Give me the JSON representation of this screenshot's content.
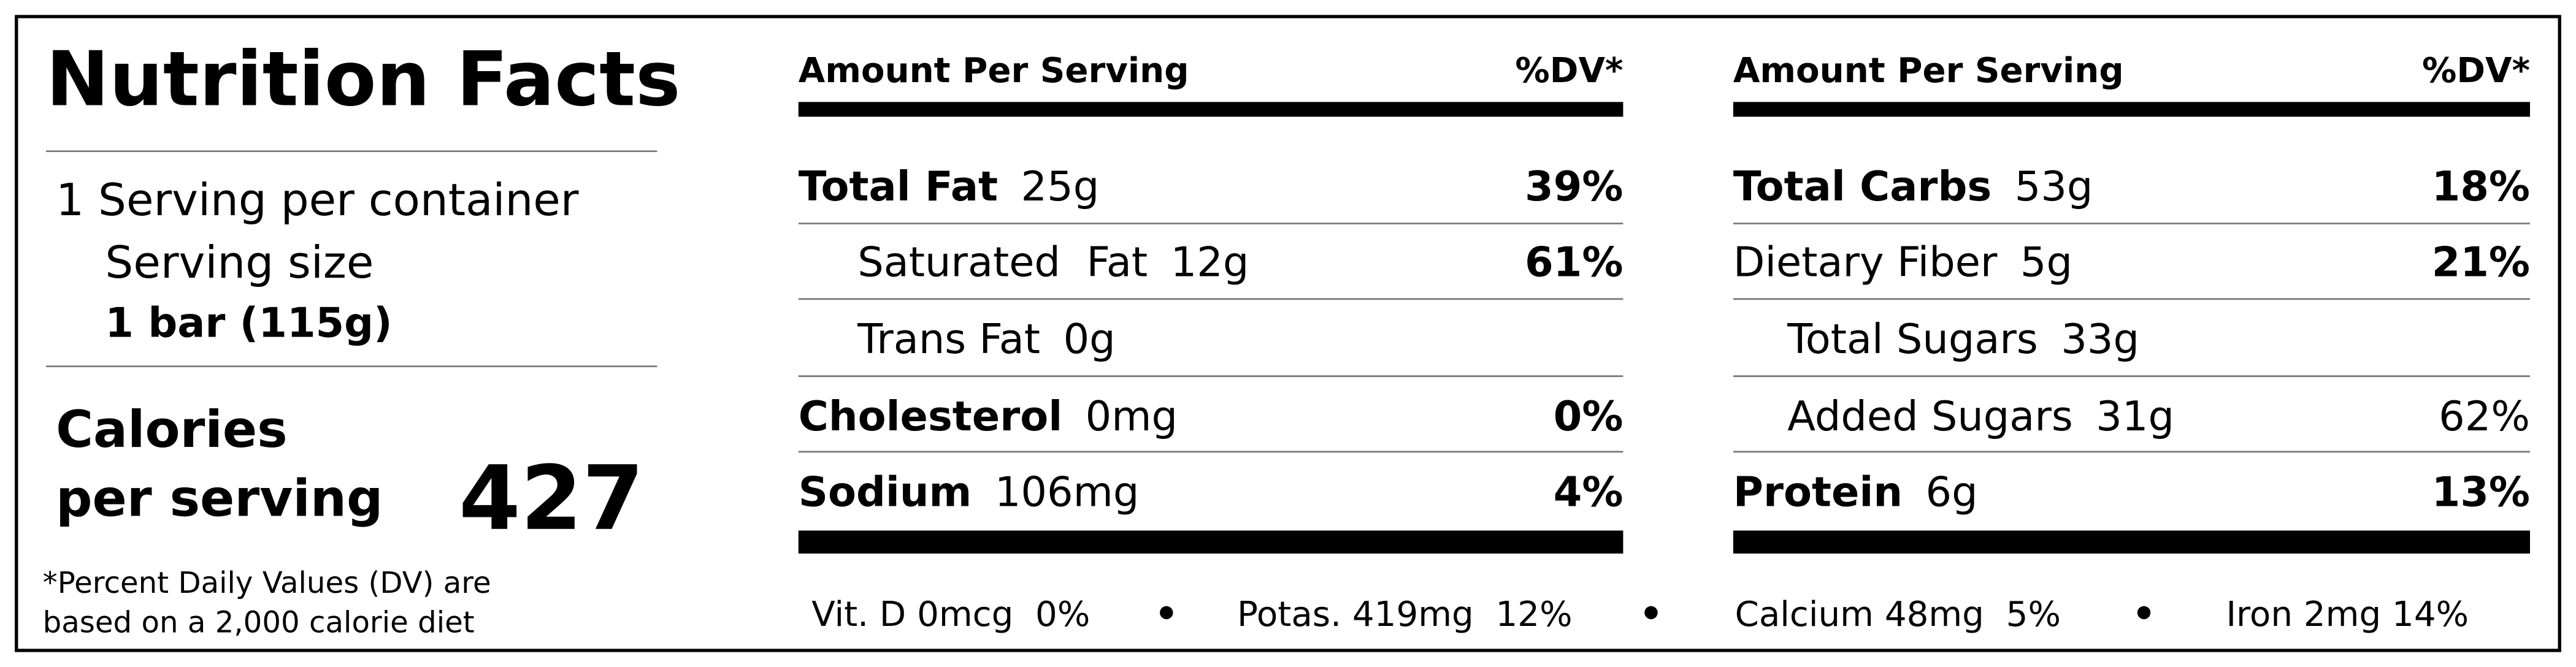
{
  "title": "Nutrition Facts",
  "servings": "1 Serving per container",
  "serving_size_label": "Serving size",
  "serving_size": "1 bar (115g)",
  "calories": {
    "label": [
      "Calories",
      "per serving"
    ],
    "value": 427
  },
  "footnote": [
    "*Percent Daily Values (DV) are",
    "based on a 2,000 calorie diet"
  ],
  "columns": [
    {
      "header": {
        "amount": "Amount Per Serving",
        "dv": "%DV*"
      },
      "rows": [
        {
          "name": "Total Fat",
          "amount": "25g",
          "dv": "39%"
        },
        {
          "name": "Saturated  Fat",
          "amount": "12g",
          "dv": "61%"
        },
        {
          "name": "Trans Fat",
          "amount": "0g"
        },
        {
          "name": "Cholesterol",
          "amount": "0mg",
          "dv": "0%"
        },
        {
          "name": "Sodium",
          "amount": "106mg",
          "dv": "4%"
        }
      ]
    },
    {
      "header": {
        "amount": "Amount Per Serving",
        "dv": "%DV*"
      },
      "rows": [
        {
          "name": "Total Carbs",
          "amount": "53g",
          "dv": "18%"
        },
        {
          "name": "Dietary Fiber",
          "amount": "5g",
          "dv": "21%"
        },
        {
          "name": "Total Sugars",
          "amount": "33g"
        },
        {
          "name": "Added Sugars",
          "amount": "31g",
          "dv": "62%"
        },
        {
          "name": "Protein",
          "amount": "6g",
          "dv": "13%"
        }
      ]
    }
  ],
  "micronutrients": [
    "Vit. D 0mcg  0%",
    "Potas. 419mg  12%",
    "Calcium 48mg  5%",
    "Iron 2mg 14%"
  ]
}
